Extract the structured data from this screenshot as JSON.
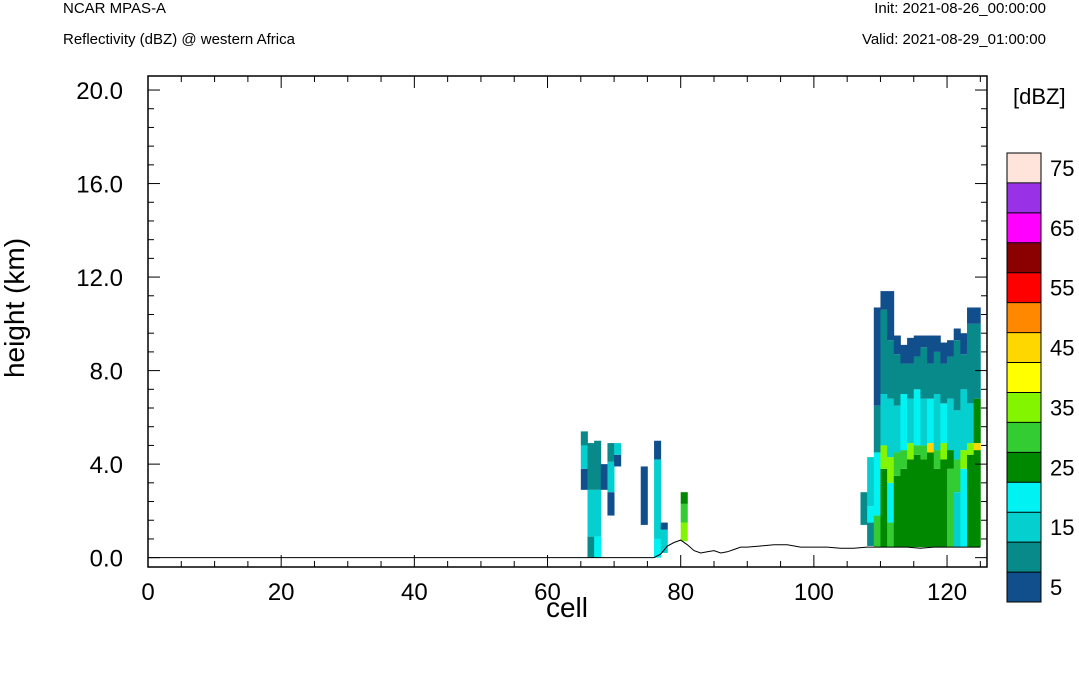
{
  "header": {
    "model": "NCAR MPAS-A",
    "subtitle": "Reflectivity (dBZ) @ western Africa",
    "init": "Init: 2021-08-26_00:00:00",
    "valid": "Valid: 2021-08-29_01:00:00"
  },
  "chart_data": {
    "type": "heatmap",
    "xlabel": "cell",
    "ylabel": "height (km)",
    "xlim": [
      0,
      126
    ],
    "ylim": [
      -0.4,
      20.6
    ],
    "x_ticks": [
      0,
      20,
      40,
      60,
      80,
      100,
      120
    ],
    "x_tick_labels": [
      "0",
      "20",
      "40",
      "60",
      "80",
      "100",
      "120"
    ],
    "y_ticks": [
      0,
      4,
      8,
      12,
      16,
      20
    ],
    "y_tick_labels": [
      "0.0",
      "4.0",
      "8.0",
      "12.0",
      "16.0",
      "20.0"
    ],
    "colorbar": {
      "title": "[dBZ]",
      "levels": [
        5,
        10,
        15,
        20,
        25,
        30,
        35,
        40,
        45,
        50,
        55,
        60,
        65,
        70,
        75
      ],
      "labels": [
        "5",
        "15",
        "25",
        "35",
        "45",
        "55",
        "65",
        "75"
      ],
      "colors": [
        "#114f8c",
        "#088a8a",
        "#06cfcf",
        "#00f2f2",
        "#008800",
        "#33cc33",
        "#84f500",
        "#ffff00",
        "#ffd700",
        "#ff8800",
        "#ff0000",
        "#8b0000",
        "#ff00ff",
        "#9932e6",
        "#ffe4dc"
      ]
    },
    "terrain": {
      "x": [
        0,
        76,
        77,
        78,
        79,
        80,
        81,
        82,
        83,
        84,
        85,
        86,
        87,
        88,
        89,
        90,
        92,
        94,
        96,
        98,
        100,
        102,
        104,
        106,
        108,
        110,
        112,
        114,
        116,
        118,
        120,
        122,
        124,
        125
      ],
      "height": [
        0.0,
        0.0,
        0.15,
        0.5,
        0.65,
        0.75,
        0.55,
        0.3,
        0.2,
        0.25,
        0.3,
        0.2,
        0.25,
        0.35,
        0.45,
        0.45,
        0.5,
        0.55,
        0.55,
        0.45,
        0.45,
        0.45,
        0.4,
        0.4,
        0.45,
        0.45,
        0.45,
        0.45,
        0.4,
        0.45,
        0.45,
        0.45,
        0.45,
        0.45
      ]
    },
    "cell_width": 1,
    "columns": [
      {
        "x": 65,
        "segments": [
          [
            2.9,
            3.8,
            5
          ],
          [
            3.8,
            4.8,
            15
          ],
          [
            4.8,
            5.4,
            10
          ]
        ]
      },
      {
        "x": 66,
        "segments": [
          [
            0.0,
            0.9,
            10
          ],
          [
            0.9,
            2.9,
            15
          ],
          [
            2.9,
            4.9,
            10
          ]
        ]
      },
      {
        "x": 67,
        "segments": [
          [
            0.0,
            0.9,
            20
          ],
          [
            0.9,
            2.9,
            15
          ],
          [
            2.9,
            5.0,
            10
          ]
        ]
      },
      {
        "x": 68,
        "segments": [
          [
            2.9,
            4.0,
            5
          ]
        ]
      },
      {
        "x": 69,
        "segments": [
          [
            1.8,
            2.8,
            5
          ],
          [
            2.8,
            4.1,
            15
          ],
          [
            4.1,
            4.9,
            10
          ]
        ]
      },
      {
        "x": 70,
        "segments": [
          [
            3.9,
            4.4,
            5
          ],
          [
            4.4,
            4.9,
            15
          ]
        ]
      },
      {
        "x": 74,
        "segments": [
          [
            1.4,
            3.9,
            5
          ]
        ]
      },
      {
        "x": 76,
        "segments": [
          [
            0.0,
            0.8,
            20
          ],
          [
            0.8,
            4.2,
            15
          ],
          [
            4.2,
            5.0,
            5
          ]
        ]
      },
      {
        "x": 77,
        "segments": [
          [
            0.2,
            1.2,
            15
          ],
          [
            1.2,
            1.5,
            5
          ]
        ]
      },
      {
        "x": 80,
        "segments": [
          [
            0.7,
            1.5,
            35
          ],
          [
            1.5,
            2.3,
            30
          ],
          [
            2.3,
            2.8,
            25
          ]
        ]
      },
      {
        "x": 107,
        "segments": [
          [
            1.4,
            2.8,
            10
          ]
        ]
      },
      {
        "x": 108,
        "segments": [
          [
            0.5,
            1.5,
            10
          ],
          [
            1.5,
            2.2,
            20
          ],
          [
            2.2,
            4.3,
            15
          ]
        ]
      },
      {
        "x": 109,
        "segments": [
          [
            0.45,
            1.8,
            30
          ],
          [
            1.8,
            4.5,
            20
          ],
          [
            4.5,
            6.5,
            10
          ],
          [
            6.5,
            10.7,
            5
          ]
        ]
      },
      {
        "x": 110,
        "segments": [
          [
            0.45,
            3.8,
            25
          ],
          [
            3.8,
            4.8,
            35
          ],
          [
            4.8,
            7.0,
            15
          ],
          [
            7.0,
            10.6,
            10
          ],
          [
            10.6,
            11.4,
            5
          ]
        ]
      },
      {
        "x": 111,
        "segments": [
          [
            0.45,
            1.5,
            30
          ],
          [
            1.5,
            3.2,
            20
          ],
          [
            3.2,
            4.3,
            35
          ],
          [
            4.3,
            6.8,
            15
          ],
          [
            6.8,
            9.3,
            10
          ],
          [
            9.3,
            11.4,
            5
          ]
        ]
      },
      {
        "x": 112,
        "segments": [
          [
            0.45,
            3.5,
            25
          ],
          [
            3.5,
            4.5,
            30
          ],
          [
            4.5,
            6.5,
            15
          ],
          [
            6.5,
            8.7,
            10
          ],
          [
            8.7,
            9.5,
            5
          ]
        ]
      },
      {
        "x": 113,
        "segments": [
          [
            0.45,
            3.8,
            25
          ],
          [
            3.8,
            4.6,
            30
          ],
          [
            4.6,
            7.0,
            20
          ],
          [
            7.0,
            8.3,
            10
          ],
          [
            8.3,
            9.1,
            5
          ]
        ]
      },
      {
        "x": 114,
        "segments": [
          [
            0.45,
            4.2,
            25
          ],
          [
            4.2,
            4.9,
            35
          ],
          [
            4.9,
            6.8,
            15
          ],
          [
            6.8,
            8.3,
            10
          ],
          [
            8.3,
            9.4,
            5
          ]
        ]
      },
      {
        "x": 115,
        "segments": [
          [
            0.45,
            4.4,
            25
          ],
          [
            4.4,
            4.8,
            30
          ],
          [
            4.8,
            7.2,
            20
          ],
          [
            7.2,
            8.6,
            10
          ],
          [
            8.6,
            9.5,
            5
          ]
        ]
      },
      {
        "x": 116,
        "segments": [
          [
            0.45,
            4.2,
            25
          ],
          [
            4.2,
            4.8,
            30
          ],
          [
            4.8,
            6.8,
            15
          ],
          [
            6.8,
            9.0,
            10
          ],
          [
            9.0,
            9.5,
            5
          ]
        ]
      },
      {
        "x": 117,
        "segments": [
          [
            0.45,
            4.5,
            25
          ],
          [
            4.5,
            4.9,
            45
          ],
          [
            4.9,
            6.8,
            20
          ],
          [
            6.8,
            8.3,
            10
          ],
          [
            8.3,
            9.5,
            5
          ]
        ]
      },
      {
        "x": 118,
        "segments": [
          [
            0.45,
            3.8,
            25
          ],
          [
            3.8,
            4.6,
            30
          ],
          [
            4.6,
            7.0,
            15
          ],
          [
            7.0,
            8.8,
            10
          ],
          [
            8.8,
            9.5,
            5
          ]
        ]
      },
      {
        "x": 119,
        "segments": [
          [
            0.45,
            4.2,
            25
          ],
          [
            4.2,
            4.9,
            35
          ],
          [
            4.9,
            6.6,
            20
          ],
          [
            6.6,
            8.3,
            10
          ],
          [
            8.3,
            9.2,
            5
          ]
        ]
      },
      {
        "x": 120,
        "segments": [
          [
            0.45,
            3.8,
            30
          ],
          [
            3.8,
            4.6,
            25
          ],
          [
            4.6,
            6.8,
            15
          ],
          [
            6.8,
            8.6,
            10
          ],
          [
            8.6,
            9.3,
            5
          ]
        ]
      },
      {
        "x": 121,
        "segments": [
          [
            0.45,
            2.8,
            15
          ],
          [
            2.8,
            4.2,
            30
          ],
          [
            4.2,
            6.3,
            15
          ],
          [
            6.3,
            9.3,
            10
          ],
          [
            9.3,
            9.8,
            5
          ]
        ]
      },
      {
        "x": 122,
        "segments": [
          [
            0.45,
            3.8,
            20
          ],
          [
            3.8,
            4.6,
            35
          ],
          [
            4.6,
            7.2,
            15
          ],
          [
            7.2,
            8.7,
            10
          ],
          [
            8.7,
            9.6,
            5
          ]
        ]
      },
      {
        "x": 123,
        "segments": [
          [
            0.45,
            4.4,
            25
          ],
          [
            4.4,
            4.9,
            35
          ],
          [
            4.9,
            6.6,
            15
          ],
          [
            6.6,
            10.0,
            10
          ],
          [
            10.0,
            10.7,
            5
          ]
        ]
      },
      {
        "x": 124,
        "segments": [
          [
            0.45,
            4.6,
            25
          ],
          [
            4.6,
            4.9,
            45
          ],
          [
            4.9,
            6.8,
            25
          ],
          [
            6.8,
            10.0,
            10
          ],
          [
            10.0,
            10.7,
            5
          ]
        ]
      }
    ]
  }
}
